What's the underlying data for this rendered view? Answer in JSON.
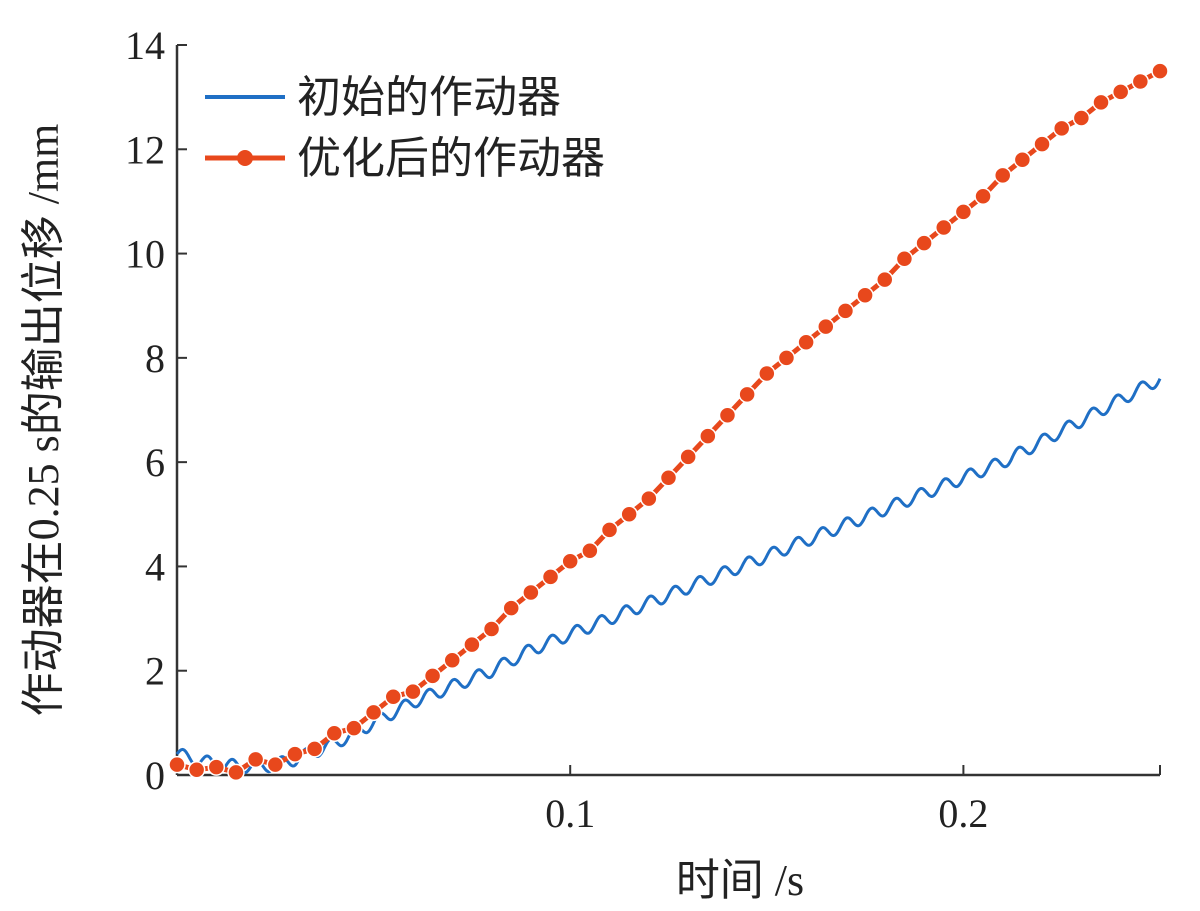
{
  "chart_data": {
    "type": "line",
    "xlabel": "时间 /s",
    "ylabel": "作动器在0.25 s的输出位移 /mm",
    "xlim": [
      0,
      0.25
    ],
    "ylim": [
      0,
      14
    ],
    "xticks": [
      0.1,
      0.2
    ],
    "xtick_labels": [
      "0.1",
      "0.2"
    ],
    "yticks": [
      0,
      2,
      4,
      6,
      8,
      10,
      12,
      14
    ],
    "ytick_labels": [
      "0",
      "2",
      "4",
      "6",
      "8",
      "10",
      "12",
      "14"
    ],
    "grid": false,
    "legend_position": "top-left",
    "series": [
      {
        "name": "初始的作动器",
        "color": "#1f6fc5",
        "marker": "none",
        "x": [
          0,
          0.01,
          0.02,
          0.025,
          0.03,
          0.04,
          0.05,
          0.06,
          0.07,
          0.08,
          0.09,
          0.1,
          0.11,
          0.12,
          0.13,
          0.14,
          0.15,
          0.16,
          0.17,
          0.18,
          0.19,
          0.2,
          0.21,
          0.22,
          0.23,
          0.24,
          0.25
        ],
        "y": [
          0.4,
          0.2,
          0.15,
          0.2,
          0.3,
          0.6,
          1.0,
          1.4,
          1.7,
          2.0,
          2.4,
          2.7,
          3.0,
          3.3,
          3.6,
          3.9,
          4.2,
          4.5,
          4.8,
          5.1,
          5.4,
          5.7,
          6.0,
          6.4,
          6.8,
          7.2,
          7.6
        ]
      },
      {
        "name": "优化后的作动器",
        "color": "#e8481c",
        "marker": "circle",
        "x": [
          0,
          0.005,
          0.01,
          0.015,
          0.02,
          0.025,
          0.03,
          0.035,
          0.04,
          0.045,
          0.05,
          0.055,
          0.06,
          0.065,
          0.07,
          0.075,
          0.08,
          0.085,
          0.09,
          0.095,
          0.1,
          0.105,
          0.11,
          0.115,
          0.12,
          0.125,
          0.13,
          0.135,
          0.14,
          0.145,
          0.15,
          0.155,
          0.16,
          0.165,
          0.17,
          0.175,
          0.18,
          0.185,
          0.19,
          0.195,
          0.2,
          0.205,
          0.21,
          0.215,
          0.22,
          0.225,
          0.23,
          0.235,
          0.24,
          0.245,
          0.25
        ],
        "y": [
          0.2,
          0.1,
          0.15,
          0.05,
          0.3,
          0.2,
          0.4,
          0.5,
          0.8,
          0.9,
          1.2,
          1.5,
          1.6,
          1.9,
          2.2,
          2.5,
          2.8,
          3.2,
          3.5,
          3.8,
          4.1,
          4.3,
          4.7,
          5.0,
          5.3,
          5.7,
          6.1,
          6.5,
          6.9,
          7.3,
          7.7,
          8.0,
          8.3,
          8.6,
          8.9,
          9.2,
          9.5,
          9.9,
          10.2,
          10.5,
          10.8,
          11.1,
          11.5,
          11.8,
          12.1,
          12.4,
          12.6,
          12.9,
          13.1,
          13.3,
          13.5
        ]
      }
    ]
  }
}
